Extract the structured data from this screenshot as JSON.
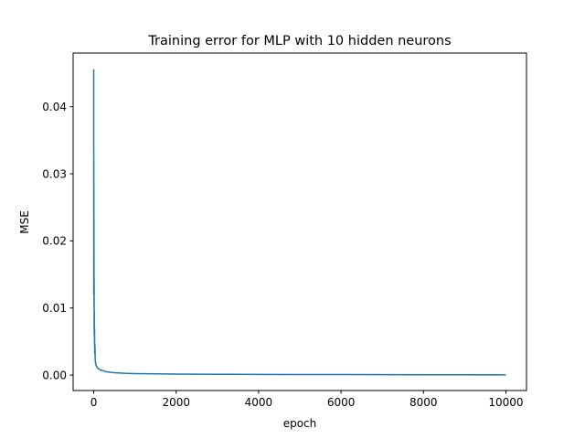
{
  "chart_data": {
    "type": "line",
    "title": "Training error for MLP with 10 hidden neurons",
    "xlabel": "epoch",
    "ylabel": "MSE",
    "xlim": [
      -500,
      10500
    ],
    "ylim": [
      -0.0023,
      0.048
    ],
    "grid": false,
    "xticks": [
      0,
      2000,
      4000,
      6000,
      8000,
      10000
    ],
    "xtick_labels": [
      "0",
      "2000",
      "4000",
      "6000",
      "8000",
      "10000"
    ],
    "yticks": [
      0.0,
      0.01,
      0.02,
      0.03,
      0.04
    ],
    "ytick_labels": [
      "0.00",
      "0.01",
      "0.02",
      "0.03",
      "0.04"
    ],
    "series": [
      {
        "color": "#1f77b4",
        "x": [
          0,
          1,
          2,
          3,
          4,
          5,
          6,
          8,
          10,
          12,
          15,
          18,
          20,
          25,
          30,
          35,
          40,
          50,
          60,
          80,
          100,
          150,
          200,
          300,
          500,
          800,
          1000,
          1500,
          2000,
          3000,
          4000,
          5000,
          6000,
          7000,
          8000,
          9000,
          10000
        ],
        "y": [
          0.0456,
          0.012,
          0.0325,
          0.0235,
          0.028,
          0.016,
          0.023,
          0.01,
          0.0145,
          0.006,
          0.0095,
          0.0045,
          0.007,
          0.0032,
          0.0045,
          0.0025,
          0.002,
          0.0016,
          0.0014,
          0.0012,
          0.001,
          0.0008,
          0.0007,
          0.0005,
          0.00035,
          0.00025,
          0.00022,
          0.00018,
          0.00015,
          0.00012,
          0.0001,
          9e-05,
          8e-05,
          7e-05,
          6e-05,
          5e-05,
          4e-05
        ]
      }
    ]
  }
}
